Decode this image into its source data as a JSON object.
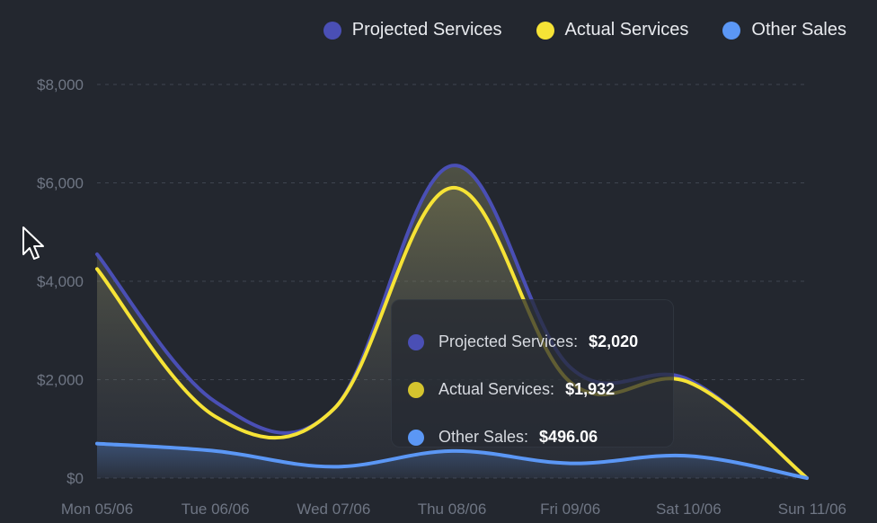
{
  "colors": {
    "background": "#23272f",
    "projected": "#4a4fb5",
    "actual": "#f6e336",
    "other": "#5b97f5",
    "grid": "#3f4550",
    "tick": "#6f7684"
  },
  "legend": {
    "items": [
      {
        "label": "Projected Services",
        "color": "#4a4fb5"
      },
      {
        "label": "Actual Services",
        "color": "#f6e336"
      },
      {
        "label": "Other Sales",
        "color": "#5b97f5"
      }
    ]
  },
  "chart_data": {
    "type": "area",
    "categories": [
      "Mon 05/06",
      "Tue 06/06",
      "Wed 07/06",
      "Thu 08/06",
      "Fri 09/06",
      "Sat 10/06",
      "Sun 11/06"
    ],
    "series": [
      {
        "name": "Projected Services",
        "values": [
          4550,
          1550,
          1400,
          6350,
          2250,
          2000,
          0
        ]
      },
      {
        "name": "Actual Services",
        "values": [
          4250,
          1250,
          1400,
          5900,
          1950,
          1950,
          0
        ]
      },
      {
        "name": "Other Sales",
        "values": [
          700,
          550,
          230,
          550,
          300,
          450,
          0
        ]
      }
    ],
    "y_ticks": [
      "$8,000",
      "$6,000",
      "$4,000",
      "$2,000",
      "$0"
    ],
    "ylim": [
      0,
      8000
    ],
    "grid": "horizontal dashed",
    "legend_position": "top-right"
  },
  "tooltip": {
    "rows": [
      {
        "label": "Projected Services:",
        "value": "$2,020",
        "color": "#4a4fb5"
      },
      {
        "label": "Actual Services:",
        "value": "$1,932",
        "color": "#d4c42e"
      },
      {
        "label": "Other Sales:",
        "value": "$496.06",
        "color": "#5b97f5"
      }
    ]
  }
}
